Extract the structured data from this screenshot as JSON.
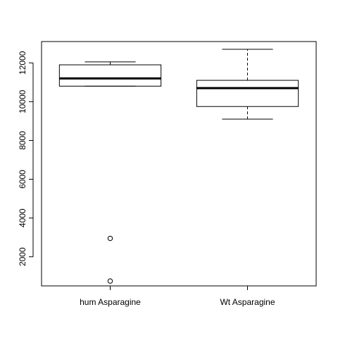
{
  "chart_data": {
    "type": "boxplot",
    "title": "",
    "xlabel": "",
    "ylabel": "",
    "ylim": [
      500,
      13100
    ],
    "yticks": [
      2000,
      4000,
      6000,
      8000,
      10000,
      12000
    ],
    "ytick_labels": [
      "2000",
      "4000",
      "6000",
      "8000",
      "10000",
      "12000"
    ],
    "grid": false,
    "legend": "none",
    "categories": [
      "hum Asparagine",
      "Wt Asparagine"
    ],
    "boxes": [
      {
        "category": "hum Asparagine",
        "whisker_low": 10800,
        "q1": 10800,
        "median": 11200,
        "q3": 11900,
        "whisker_high": 12050,
        "outliers": [
          2950,
          750
        ]
      },
      {
        "category": "Wt Asparagine",
        "whisker_low": 9100,
        "q1": 9750,
        "median": 10700,
        "q3": 11100,
        "whisker_high": 12700,
        "outliers": []
      }
    ]
  }
}
